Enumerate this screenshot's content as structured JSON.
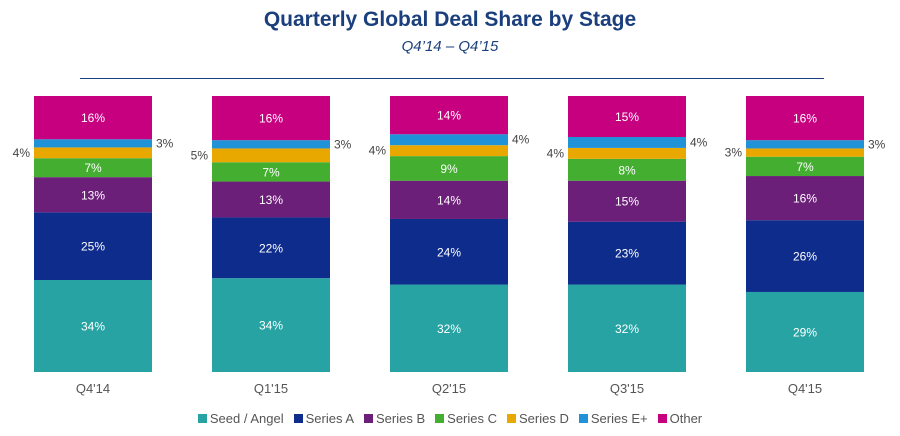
{
  "chart_data": {
    "type": "bar",
    "stacked": true,
    "title": "Quarterly Global Deal Share by Stage",
    "subtitle": "Q4’14 – Q4’15",
    "categories": [
      "Q4'14",
      "Q1'15",
      "Q2'15",
      "Q3'15",
      "Q4'15"
    ],
    "value_suffix": "%",
    "series": [
      {
        "name": "Seed /  Angel",
        "color": "#27A3A3",
        "values": [
          34,
          34,
          32,
          32,
          29
        ]
      },
      {
        "name": "Series A",
        "color": "#0E2C8C",
        "values": [
          25,
          22,
          24,
          23,
          26
        ]
      },
      {
        "name": "Series B",
        "color": "#6C1F78",
        "values": [
          13,
          13,
          14,
          15,
          16
        ]
      },
      {
        "name": "Series C",
        "color": "#43AE2F",
        "values": [
          7,
          7,
          9,
          8,
          7
        ]
      },
      {
        "name": "Series D",
        "color": "#E8A800",
        "values": [
          4,
          5,
          4,
          4,
          3
        ]
      },
      {
        "name": "Series E+",
        "color": "#2092D8",
        "values": [
          3,
          3,
          4,
          4,
          3
        ]
      },
      {
        "name": "Other",
        "color": "#C6007E",
        "values": [
          16,
          16,
          14,
          15,
          16
        ]
      }
    ],
    "legend_position": "bottom",
    "grid": false
  }
}
